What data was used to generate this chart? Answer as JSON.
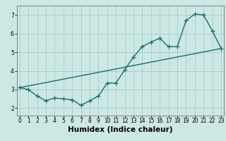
{
  "title": "",
  "xlabel": "Humidex (Indice chaleur)",
  "bg_color": "#cce8e4",
  "grid_color": "#aad0cc",
  "line_color": "#1a6e64",
  "line1_x": [
    0,
    1,
    2,
    3,
    4,
    5,
    6,
    7,
    8,
    9,
    10,
    11,
    12,
    13,
    14,
    15,
    16,
    17,
    18,
    19,
    20,
    21,
    22,
    23
  ],
  "line1_y": [
    3.1,
    3.0,
    2.65,
    2.4,
    2.55,
    2.5,
    2.45,
    2.15,
    2.4,
    2.65,
    3.35,
    3.35,
    4.05,
    4.75,
    5.3,
    5.55,
    5.75,
    5.3,
    5.3,
    6.7,
    7.05,
    7.0,
    6.15,
    5.2
  ],
  "line2_x": [
    0,
    23
  ],
  "line2_y": [
    3.1,
    5.2
  ],
  "xlim": [
    -0.3,
    23.3
  ],
  "ylim": [
    1.6,
    7.5
  ],
  "yticks": [
    2,
    3,
    4,
    5,
    6,
    7
  ],
  "xticks": [
    0,
    1,
    2,
    3,
    4,
    5,
    6,
    7,
    8,
    9,
    10,
    11,
    12,
    13,
    14,
    15,
    16,
    17,
    18,
    19,
    20,
    21,
    22,
    23
  ],
  "marker": "+",
  "markersize": 4,
  "linewidth": 1.0,
  "tick_fontsize": 5.5,
  "label_fontsize": 7.5,
  "spine_color": "#808080"
}
